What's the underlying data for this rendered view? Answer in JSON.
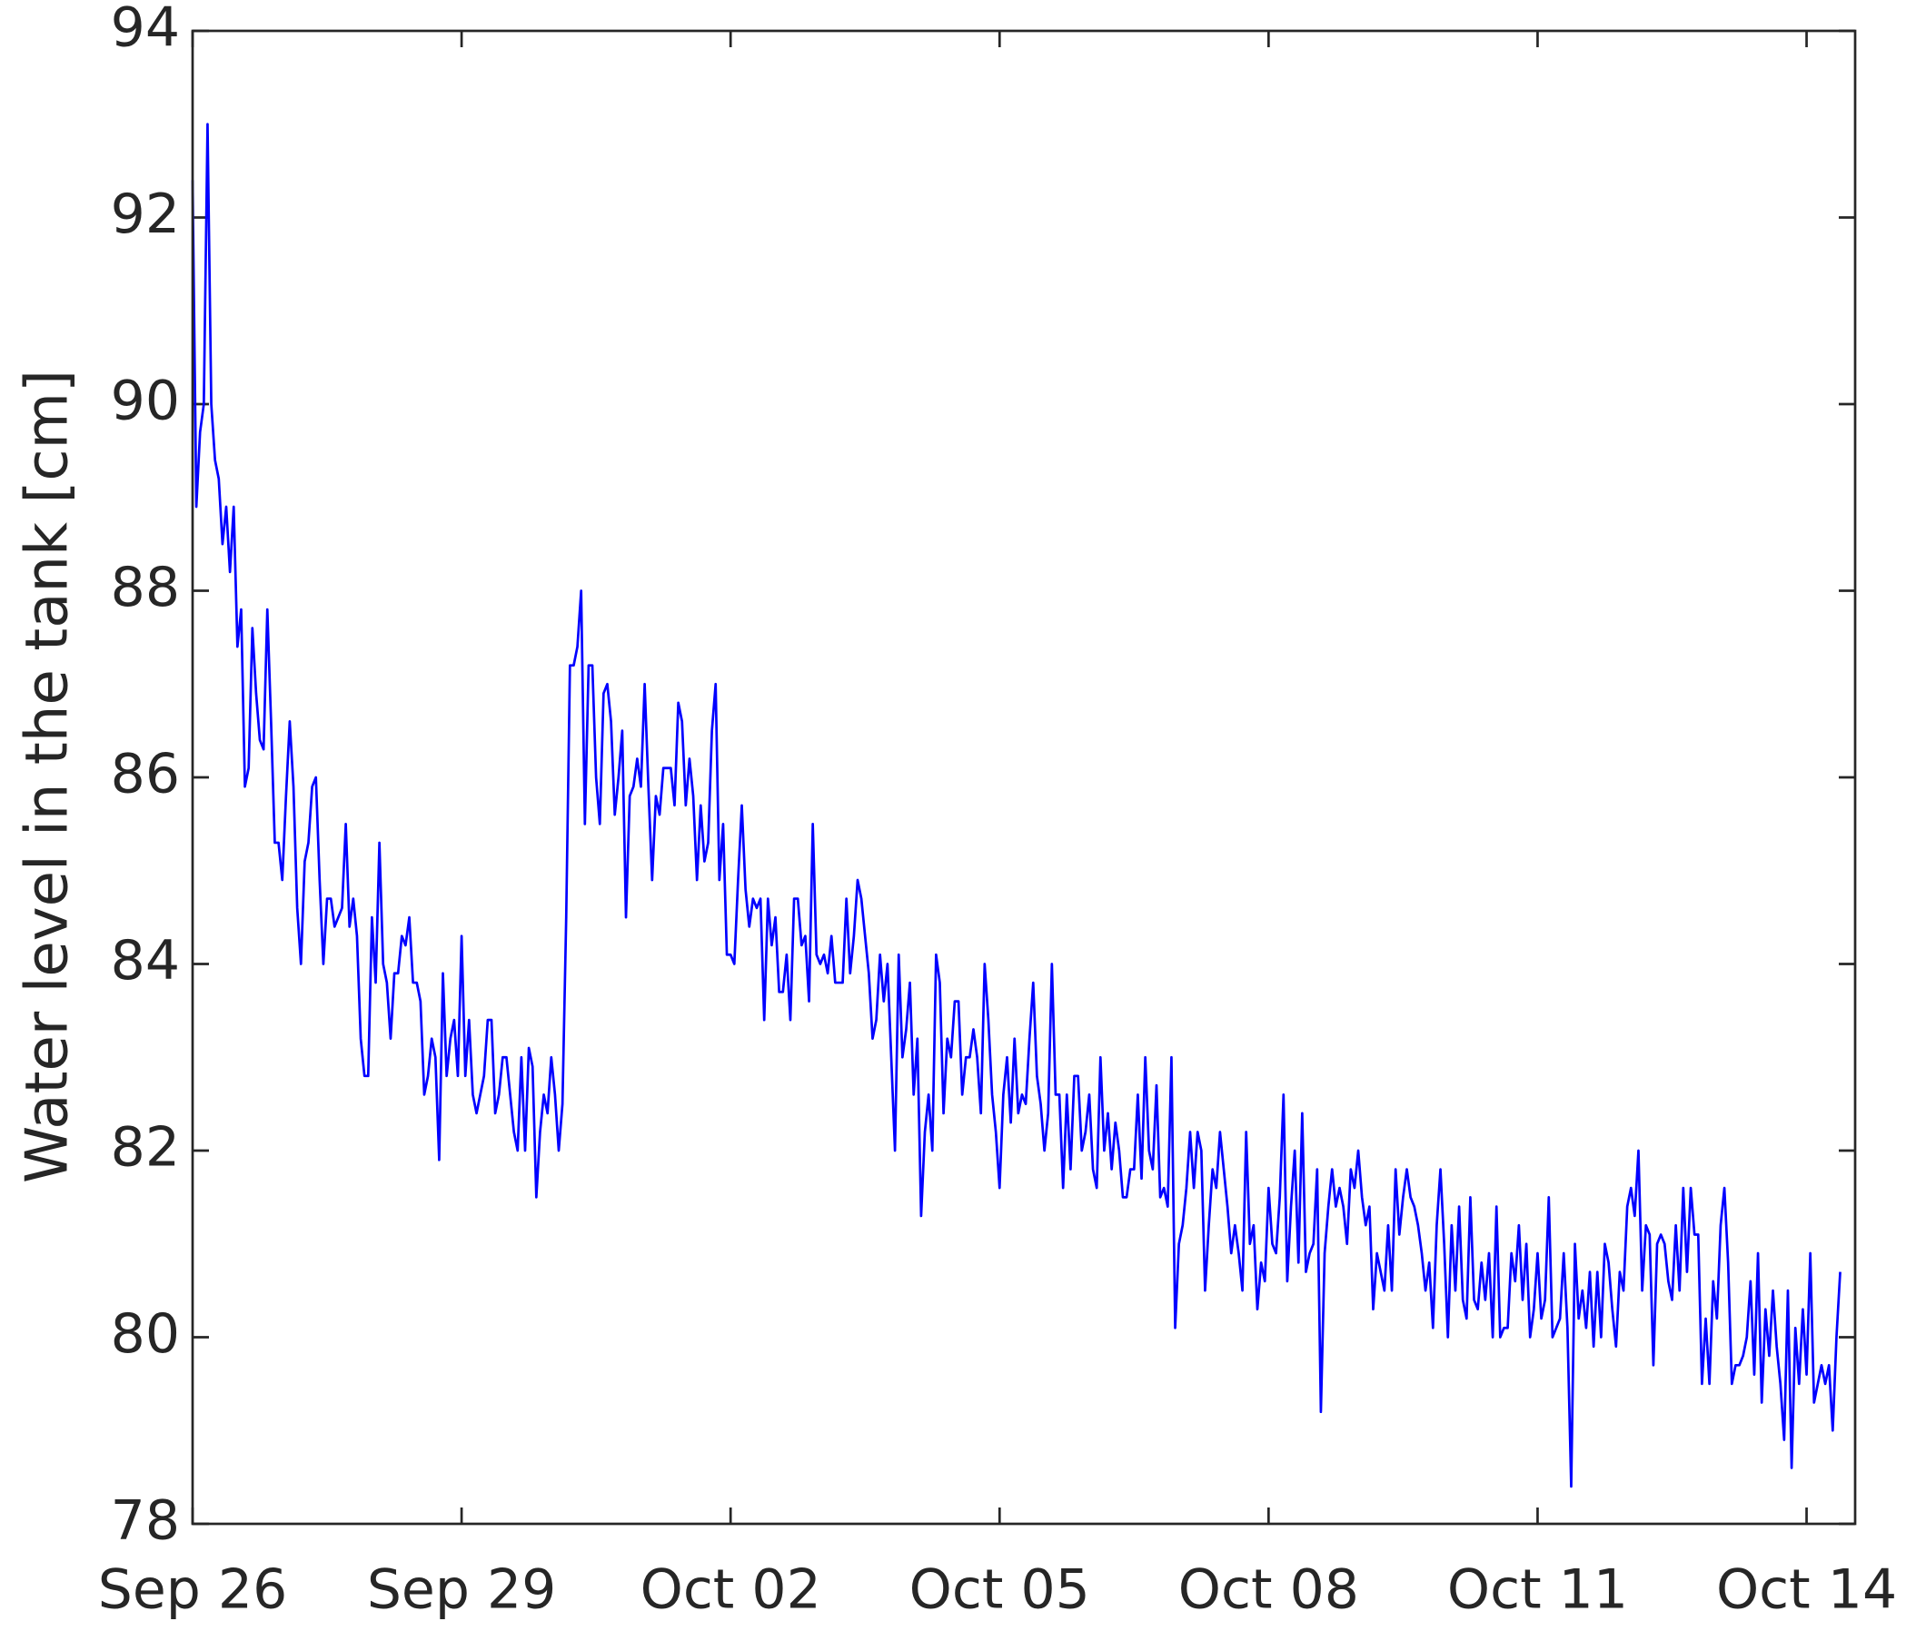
{
  "chart_data": {
    "type": "line",
    "y_label": "Water level in the tank [cm]",
    "color": "#0000ff",
    "xlim": [
      0,
      445
    ],
    "xticks": [
      {
        "value": 0,
        "label": "Sep 26"
      },
      {
        "value": 72,
        "label": "Sep 29"
      },
      {
        "value": 144,
        "label": "Oct 02"
      },
      {
        "value": 216,
        "label": "Oct 05"
      },
      {
        "value": 288,
        "label": "Oct 08"
      },
      {
        "value": 360,
        "label": "Oct 11"
      },
      {
        "value": 432,
        "label": "Oct 14"
      }
    ],
    "ylim": [
      78,
      94
    ],
    "yticks": [
      78,
      80,
      82,
      84,
      86,
      88,
      90,
      92,
      94
    ],
    "x": [
      0,
      1,
      2,
      3,
      4,
      5,
      6,
      7,
      8,
      9,
      10,
      11,
      12,
      13,
      14,
      15,
      16,
      17,
      18,
      19,
      20,
      21,
      22,
      23,
      24,
      25,
      26,
      27,
      28,
      29,
      30,
      31,
      32,
      33,
      34,
      35,
      36,
      37,
      38,
      39,
      40,
      41,
      42,
      43,
      44,
      45,
      46,
      47,
      48,
      49,
      50,
      51,
      52,
      53,
      54,
      55,
      56,
      57,
      58,
      59,
      60,
      61,
      62,
      63,
      64,
      65,
      66,
      67,
      68,
      69,
      70,
      71,
      72,
      73,
      74,
      75,
      76,
      77,
      78,
      79,
      80,
      81,
      82,
      83,
      84,
      85,
      86,
      87,
      88,
      89,
      90,
      91,
      92,
      93,
      94,
      95,
      96,
      97,
      98,
      99,
      100,
      101,
      102,
      103,
      104,
      105,
      106,
      107,
      108,
      109,
      110,
      111,
      112,
      113,
      114,
      115,
      116,
      117,
      118,
      119,
      120,
      121,
      122,
      123,
      124,
      125,
      126,
      127,
      128,
      129,
      130,
      131,
      132,
      133,
      134,
      135,
      136,
      137,
      138,
      139,
      140,
      141,
      142,
      143,
      144,
      145,
      146,
      147,
      148,
      149,
      150,
      151,
      152,
      153,
      154,
      155,
      156,
      157,
      158,
      159,
      160,
      161,
      162,
      163,
      164,
      165,
      166,
      167,
      168,
      169,
      170,
      171,
      172,
      173,
      174,
      175,
      176,
      177,
      178,
      179,
      180,
      181,
      182,
      183,
      184,
      185,
      186,
      187,
      188,
      189,
      190,
      191,
      192,
      193,
      194,
      195,
      196,
      197,
      198,
      199,
      200,
      201,
      202,
      203,
      204,
      205,
      206,
      207,
      208,
      209,
      210,
      211,
      212,
      213,
      214,
      215,
      216,
      217,
      218,
      219,
      220,
      221,
      222,
      223,
      224,
      225,
      226,
      227,
      228,
      229,
      230,
      231,
      232,
      233,
      234,
      235,
      236,
      237,
      238,
      239,
      240,
      241,
      242,
      243,
      244,
      245,
      246,
      247,
      248,
      249,
      250,
      251,
      252,
      253,
      254,
      255,
      256,
      257,
      258,
      259,
      260,
      261,
      262,
      263,
      264,
      265,
      266,
      267,
      268,
      269,
      270,
      271,
      272,
      273,
      274,
      275,
      276,
      277,
      278,
      279,
      280,
      281,
      282,
      283,
      284,
      285,
      286,
      287,
      288,
      289,
      290,
      291,
      292,
      293,
      294,
      295,
      296,
      297,
      298,
      299,
      300,
      301,
      302,
      303,
      304,
      305,
      306,
      307,
      308,
      309,
      310,
      311,
      312,
      313,
      314,
      315,
      316,
      317,
      318,
      319,
      320,
      321,
      322,
      323,
      324,
      325,
      326,
      327,
      328,
      329,
      330,
      331,
      332,
      333,
      334,
      335,
      336,
      337,
      338,
      339,
      340,
      341,
      342,
      343,
      344,
      345,
      346,
      347,
      348,
      349,
      350,
      351,
      352,
      353,
      354,
      355,
      356,
      357,
      358,
      359,
      360,
      361,
      362,
      363,
      364,
      365,
      366,
      367,
      368,
      369,
      370,
      371,
      372,
      373,
      374,
      375,
      376,
      377,
      378,
      379,
      380,
      381,
      382,
      383,
      384,
      385,
      386,
      387,
      388,
      389,
      390,
      391,
      392,
      393,
      394,
      395,
      396,
      397,
      398,
      399,
      400,
      401,
      402,
      403,
      404,
      405,
      406,
      407,
      408,
      409,
      410,
      411,
      412,
      413,
      414,
      415,
      416,
      417,
      418,
      419,
      420,
      421,
      422,
      423,
      424,
      425,
      426,
      427,
      428,
      429,
      430,
      431,
      432,
      433,
      434,
      435,
      436,
      437,
      438,
      439,
      440,
      441
    ],
    "values": [
      92.4,
      88.9,
      89.7,
      90.0,
      93.0,
      90.0,
      89.4,
      89.2,
      88.5,
      88.9,
      88.2,
      88.9,
      87.4,
      87.8,
      85.9,
      86.1,
      87.6,
      86.9,
      86.4,
      86.3,
      87.8,
      86.6,
      85.3,
      85.3,
      84.9,
      85.8,
      86.6,
      85.9,
      84.6,
      84.0,
      85.1,
      85.3,
      85.9,
      86.0,
      84.9,
      84.0,
      84.7,
      84.7,
      84.4,
      84.5,
      84.6,
      85.5,
      84.4,
      84.7,
      84.3,
      83.2,
      82.8,
      82.8,
      84.5,
      83.8,
      85.3,
      84.0,
      83.8,
      83.2,
      83.9,
      83.9,
      84.3,
      84.2,
      84.5,
      83.8,
      83.8,
      83.6,
      82.6,
      82.8,
      83.2,
      83.0,
      81.9,
      83.9,
      82.8,
      83.2,
      83.4,
      82.8,
      84.3,
      82.8,
      83.4,
      82.6,
      82.4,
      82.6,
      82.8,
      83.4,
      83.4,
      82.4,
      82.6,
      83.0,
      83.0,
      82.6,
      82.2,
      82.0,
      83.0,
      82.0,
      83.1,
      82.9,
      81.5,
      82.2,
      82.6,
      82.4,
      83.0,
      82.6,
      82.0,
      82.5,
      84.5,
      87.2,
      87.2,
      87.4,
      88.0,
      85.5,
      87.2,
      87.2,
      86.0,
      85.5,
      86.9,
      87.0,
      86.6,
      85.6,
      86.0,
      86.5,
      84.5,
      85.8,
      85.9,
      86.2,
      85.9,
      87.0,
      85.9,
      84.9,
      85.8,
      85.6,
      86.1,
      86.1,
      86.1,
      85.7,
      86.8,
      86.6,
      85.7,
      86.2,
      85.8,
      84.9,
      85.7,
      85.1,
      85.3,
      86.5,
      87.0,
      84.9,
      85.5,
      84.1,
      84.1,
      84.0,
      84.9,
      85.7,
      84.8,
      84.4,
      84.7,
      84.6,
      84.7,
      83.4,
      84.7,
      84.2,
      84.5,
      83.7,
      83.7,
      84.1,
      83.4,
      84.7,
      84.7,
      84.2,
      84.3,
      83.6,
      85.5,
      84.1,
      84.0,
      84.1,
      83.9,
      84.3,
      83.8,
      83.8,
      83.8,
      84.7,
      83.9,
      84.3,
      84.9,
      84.7,
      84.3,
      83.9,
      83.2,
      83.4,
      84.1,
      83.6,
      84.0,
      83.0,
      82.0,
      84.1,
      83.0,
      83.3,
      83.8,
      82.6,
      83.2,
      81.3,
      82.2,
      82.6,
      82.0,
      84.1,
      83.8,
      82.4,
      83.2,
      83.0,
      83.6,
      83.6,
      82.6,
      83.0,
      83.0,
      83.3,
      83.0,
      82.4,
      84.0,
      83.4,
      82.6,
      82.2,
      81.6,
      82.6,
      83.0,
      82.3,
      83.2,
      82.4,
      82.6,
      82.5,
      83.2,
      83.8,
      82.8,
      82.5,
      82.0,
      82.4,
      84.0,
      82.6,
      82.6,
      81.6,
      82.6,
      81.8,
      82.8,
      82.8,
      82.0,
      82.2,
      82.6,
      81.8,
      81.6,
      83.0,
      82.0,
      82.4,
      81.8,
      82.3,
      82.0,
      81.5,
      81.5,
      81.8,
      81.8,
      82.6,
      81.7,
      83.0,
      82.0,
      81.8,
      82.7,
      81.5,
      81.6,
      81.4,
      83.0,
      80.1,
      81.0,
      81.2,
      81.6,
      82.2,
      81.6,
      82.2,
      82.0,
      80.5,
      81.2,
      81.8,
      81.6,
      82.2,
      81.8,
      81.4,
      80.9,
      81.2,
      80.9,
      80.5,
      82.2,
      81.0,
      81.2,
      80.3,
      80.8,
      80.6,
      81.6,
      81.0,
      80.9,
      81.5,
      82.6,
      80.6,
      81.4,
      82.0,
      80.8,
      82.4,
      80.7,
      80.9,
      81.0,
      81.8,
      79.2,
      80.9,
      81.4,
      81.8,
      81.4,
      81.6,
      81.4,
      81.0,
      81.8,
      81.6,
      82.0,
      81.5,
      81.2,
      81.4,
      80.3,
      80.9,
      80.7,
      80.5,
      81.2,
      80.5,
      81.8,
      81.1,
      81.5,
      81.8,
      81.5,
      81.4,
      81.2,
      80.9,
      80.5,
      80.8,
      80.1,
      81.2,
      81.8,
      81.0,
      80.0,
      81.2,
      80.5,
      81.4,
      80.4,
      80.2,
      81.5,
      80.4,
      80.3,
      80.8,
      80.4,
      80.9,
      80.0,
      81.4,
      80.0,
      80.1,
      80.1,
      80.9,
      80.6,
      81.2,
      80.4,
      81.0,
      80.0,
      80.3,
      80.9,
      80.2,
      80.4,
      81.5,
      80.0,
      80.1,
      80.2,
      80.9,
      80.1,
      78.4,
      81.0,
      80.2,
      80.5,
      80.1,
      80.7,
      79.9,
      80.7,
      80.0,
      81.0,
      80.8,
      80.3,
      79.9,
      80.7,
      80.5,
      81.4,
      81.6,
      81.3,
      82.0,
      80.5,
      81.2,
      81.1,
      79.7,
      81.0,
      81.1,
      81.0,
      80.6,
      80.4,
      81.2,
      80.5,
      81.6,
      80.7,
      81.6,
      81.1,
      81.1,
      79.5,
      80.2,
      79.5,
      80.6,
      80.2,
      81.2,
      81.6,
      80.8,
      79.5,
      79.7,
      79.7,
      79.8,
      80.0,
      80.6,
      79.6,
      80.9,
      79.3,
      80.3,
      79.8,
      80.5,
      79.9,
      79.5,
      78.9,
      80.5,
      78.6,
      80.1,
      79.5,
      80.3,
      79.6,
      80.9,
      79.3,
      79.5,
      79.7,
      79.5,
      79.7,
      79.0,
      80.0,
      80.7
    ]
  }
}
